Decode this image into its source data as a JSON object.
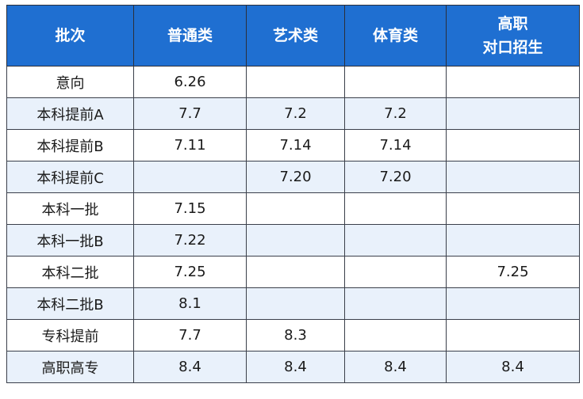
{
  "table": {
    "headers": [
      "批次",
      "普通类",
      "艺术类",
      "体育类"
    ],
    "last_header_lines": [
      "高职",
      "对口招生"
    ],
    "rows": [
      [
        "意向",
        "6.26",
        "",
        "",
        ""
      ],
      [
        "本科提前A",
        "7.7",
        "7.2",
        "7.2",
        ""
      ],
      [
        "本科提前B",
        "7.11",
        "7.14",
        "7.14",
        ""
      ],
      [
        "本科提前C",
        "",
        "7.20",
        "7.20",
        ""
      ],
      [
        "本科一批",
        "7.15",
        "",
        "",
        ""
      ],
      [
        "本科一批B",
        "7.22",
        "",
        "",
        ""
      ],
      [
        "本科二批",
        "7.25",
        "",
        "",
        "7.25"
      ],
      [
        "本科二批B",
        "8.1",
        "",
        "",
        ""
      ],
      [
        "专科提前",
        "7.7",
        "8.3",
        "",
        ""
      ],
      [
        "高职高专",
        "8.4",
        "8.4",
        "8.4",
        "8.4"
      ]
    ]
  },
  "colors": {
    "header_bg": "#1f6fd1",
    "header_text": "#ffffff",
    "stripe": "#e9f1fb",
    "border": "#3a3f4a"
  }
}
